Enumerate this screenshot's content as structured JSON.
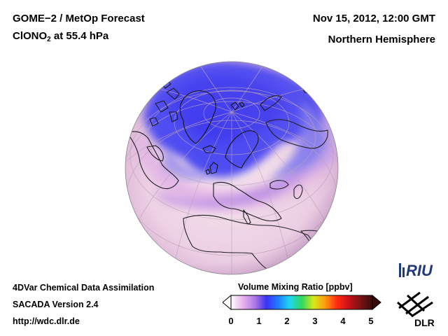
{
  "header": {
    "title_line1": "GOME−2 / MetOp Forecast",
    "species_main": "ClONO",
    "species_sub": "2",
    "species_rest": " at 55.4 hPa",
    "datetime": "Nov 15, 2012, 12:00 GMT",
    "region": "Northern Hemisphere"
  },
  "footer": {
    "line1": "4DVar Chemical Data Assimilation",
    "line2": "SACADA Version 2.4",
    "line3": "http://wdc.dlr.de"
  },
  "colorbar": {
    "title": "Volume Mixing Ratio [ppbv]",
    "ticks": [
      "0",
      "1",
      "2",
      "3",
      "4",
      "5"
    ],
    "range": [
      0,
      5
    ],
    "stops": [
      "#ffffff",
      "#e9b3ef",
      "#b07ae8",
      "#3a33f2",
      "#1e7dff",
      "#20d6f0",
      "#2fd860",
      "#d8e81a",
      "#ff9a10",
      "#ff2a10",
      "#c8101a",
      "#7a1414",
      "#3a0a0a"
    ]
  },
  "logos": {
    "riu": "RIU",
    "dlr": "DLR"
  },
  "colors": {
    "background": "#ffffff",
    "low_values": "#4a46f2",
    "high_values": "#f5e2ec"
  }
}
